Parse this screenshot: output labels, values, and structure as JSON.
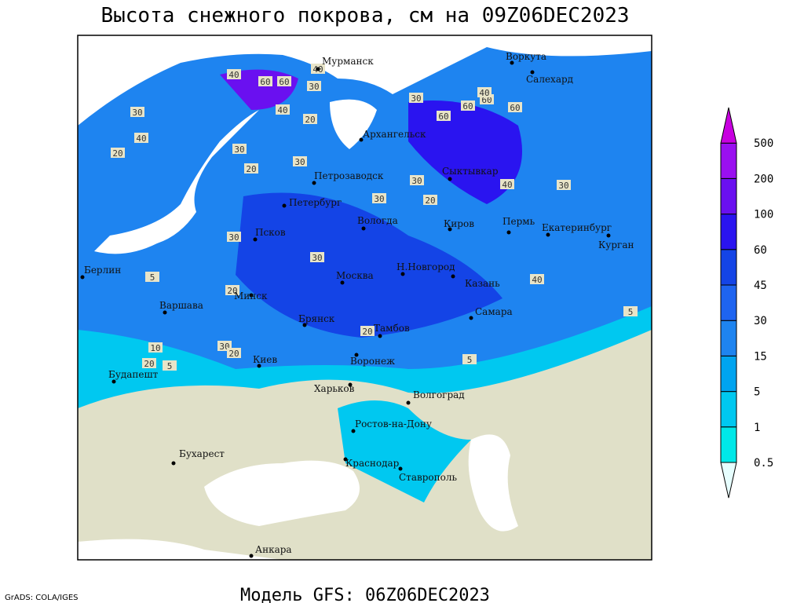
{
  "title": "Высота снежного покрова, см на 09Z06DEC2023",
  "footer": "Модель GFS: 06Z06DEC2023",
  "credit": "GrADS: COLA/IGES",
  "cities": [
    "Мурманск",
    "Воркута",
    "Салехард",
    "Архангельск",
    "Петрозаводск",
    "Сыктывкар",
    "Петербург",
    "Вологда",
    "Киров",
    "Пермь",
    "Екатеринбург",
    "Псков",
    "Курган",
    "Н.Новгород",
    "Берлин",
    "Москва",
    "Казань",
    "Минск",
    "Варшава",
    "Брянск",
    "Самара",
    "Тамбов",
    "Киев",
    "Воронеж",
    "Будапешт",
    "Харьков",
    "Волгоград",
    "Ростов-на-Дону",
    "Бухарест",
    "Краснодар",
    "Ставрополь",
    "Анкара"
  ],
  "contour_labels": [
    40,
    60,
    30,
    40,
    60,
    40,
    30,
    20,
    30,
    60,
    60,
    40,
    60,
    20,
    20,
    30,
    40,
    60,
    30,
    30,
    30,
    20,
    30,
    40,
    30,
    20,
    5,
    10,
    30,
    20,
    20,
    5,
    5,
    20,
    5,
    40,
    30
  ],
  "colorbar": {
    "levels": [
      0.5,
      1,
      5,
      15,
      30,
      45,
      60,
      100,
      200,
      500
    ],
    "colors": [
      "#e6fefe",
      "#00e8e8",
      "#00c8f0",
      "#00a4f0",
      "#1e84f0",
      "#1e64f0",
      "#1444e6",
      "#2a14f0",
      "#6a10f0",
      "#9a10f0",
      "#c800e0"
    ]
  }
}
